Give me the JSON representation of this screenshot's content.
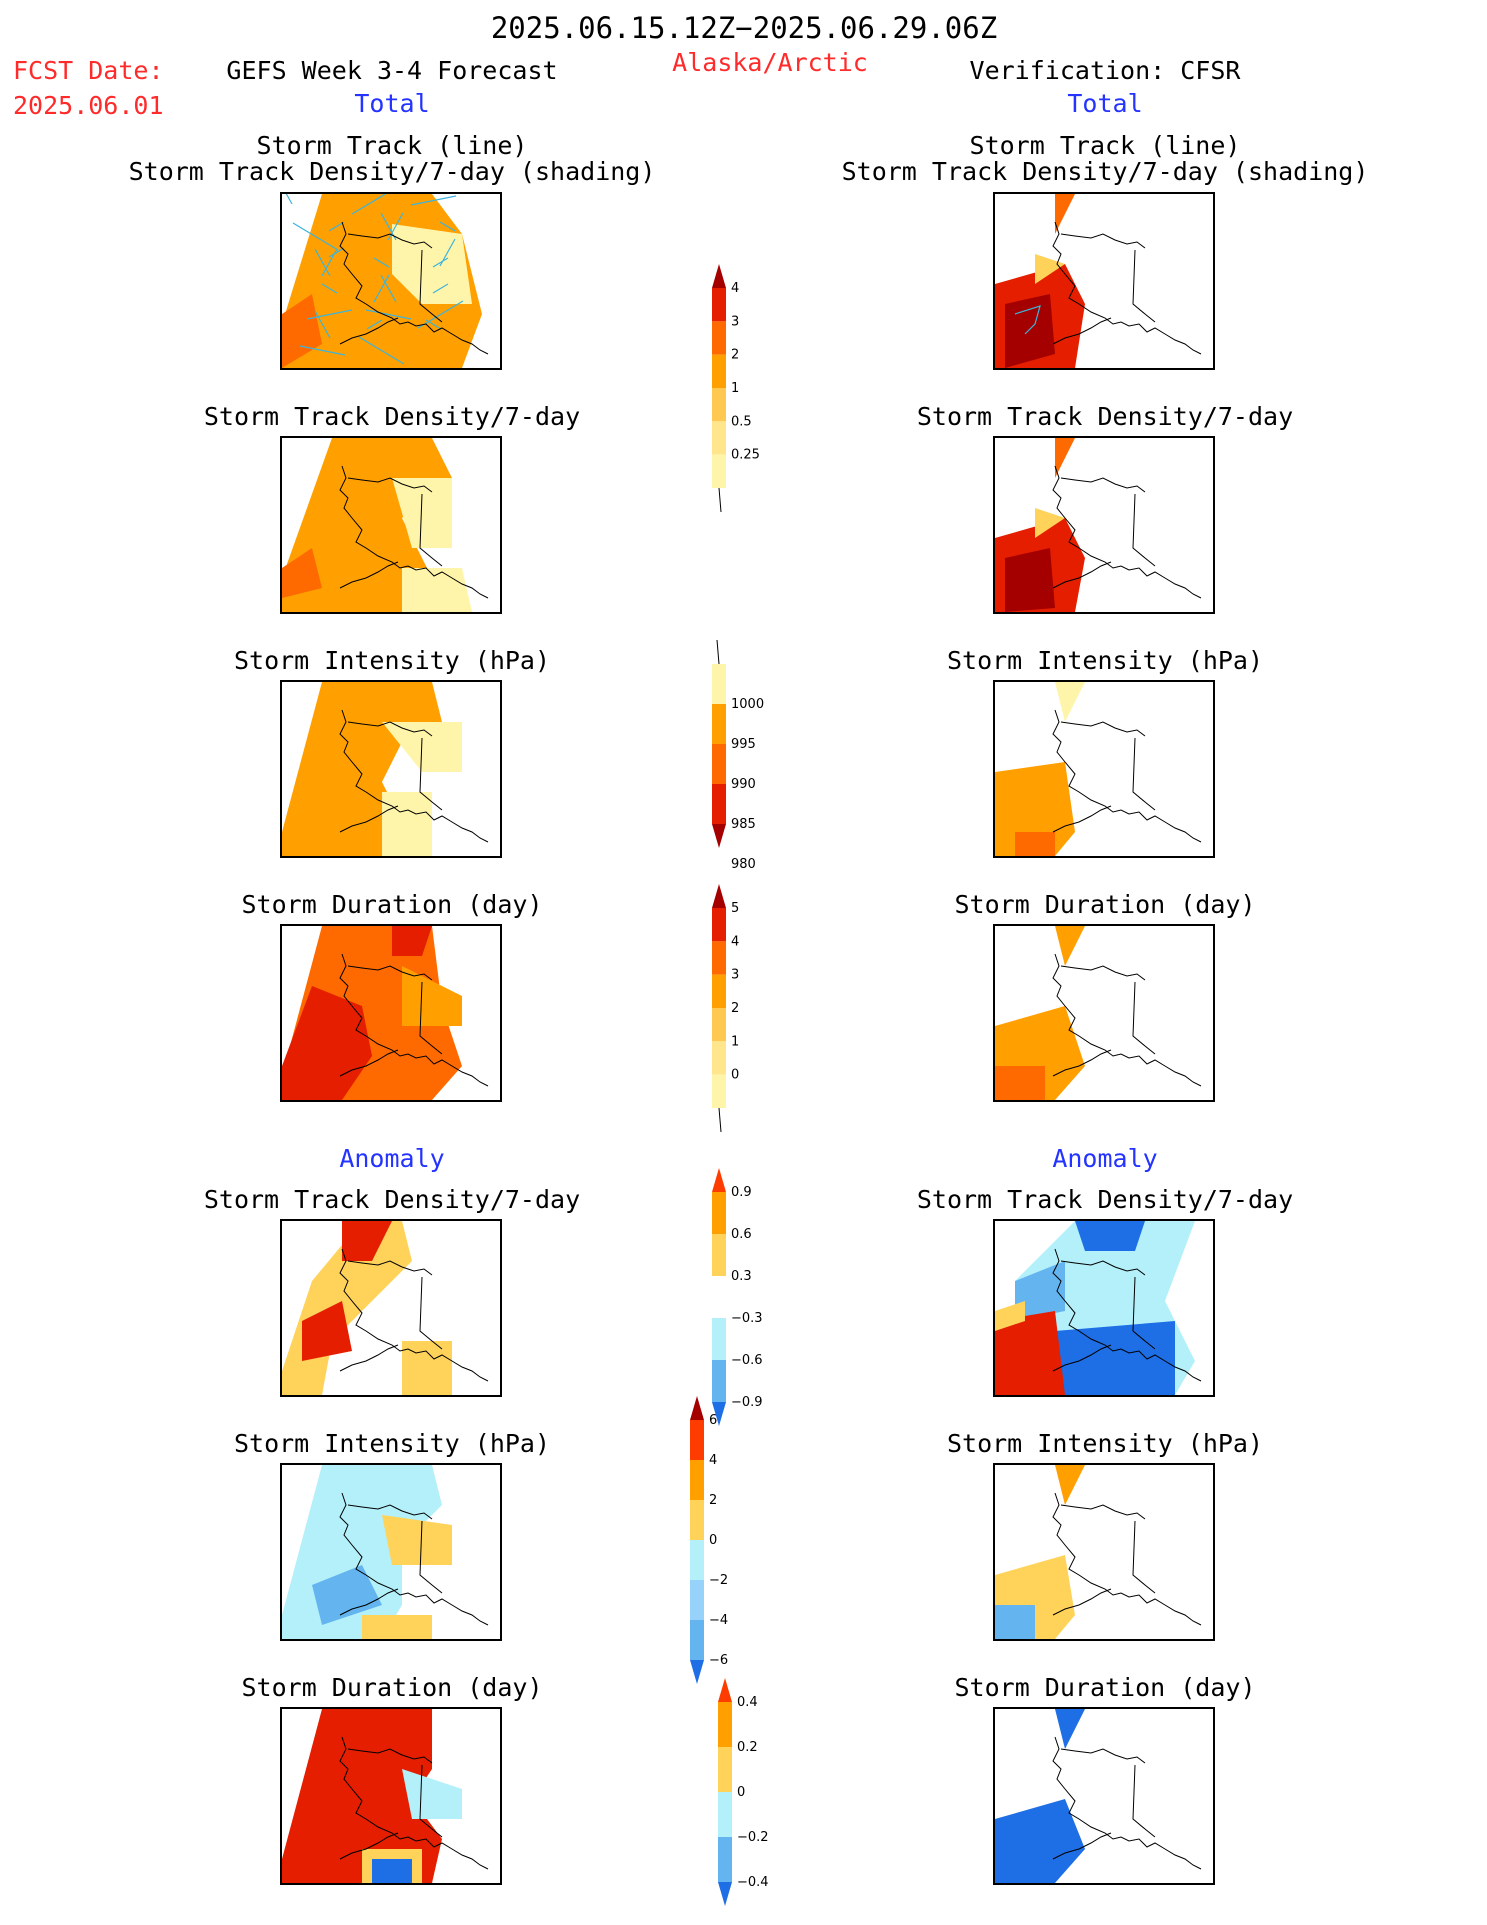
{
  "header": {
    "date_range": "2025.06.15.12Z−2025.06.29.06Z",
    "fcst_label": "FCST Date:",
    "fcst_date": "2025.06.01",
    "left_title": "GEFS Week 3-4 Forecast",
    "region": "Alaska/Arctic",
    "right_title": "Verification: CFSR"
  },
  "sections": {
    "total": "Total",
    "anomaly": "Anomaly"
  },
  "panel_titles": {
    "track_line": "Storm Track (line)",
    "track_shading": "Storm Track Density/7-day (shading)",
    "density": "Storm Track Density/7-day",
    "intensity": "Storm Intensity (hPa)",
    "duration": "Storm Duration (day)"
  },
  "colors": {
    "title_red": "#ff2a2a",
    "section_blue": "#2433ff",
    "pale_yellow": "#fff5aa",
    "yellow": "#ffd25a",
    "orange": "#ffa000",
    "dark_orange": "#ff6a00",
    "red": "#e51e00",
    "dark_red": "#a50000",
    "light_blue": "#b4f0fa",
    "mid_blue": "#64b4f0",
    "blue": "#1e6ee6",
    "track_line": "#3cb4dc"
  },
  "chart_data": [
    {
      "type": "heatmap",
      "id": "gefs-track-total",
      "title": "Storm Track (line) / Storm Track Density/7-day (shading)",
      "column": "GEFS Week 3-4 Forecast",
      "section": "Total",
      "colorbar": "density"
    },
    {
      "type": "heatmap",
      "id": "cfsr-track-total",
      "title": "Storm Track (line) / Storm Track Density/7-day (shading)",
      "column": "Verification: CFSR",
      "section": "Total",
      "colorbar": "density"
    },
    {
      "type": "heatmap",
      "id": "gefs-density-total",
      "title": "Storm Track Density/7-day",
      "column": "GEFS Week 3-4 Forecast",
      "section": "Total",
      "colorbar": "density"
    },
    {
      "type": "heatmap",
      "id": "cfsr-density-total",
      "title": "Storm Track Density/7-day",
      "column": "Verification: CFSR",
      "section": "Total",
      "colorbar": "density"
    },
    {
      "type": "heatmap",
      "id": "gefs-intensity-total",
      "title": "Storm Intensity (hPa)",
      "column": "GEFS Week 3-4 Forecast",
      "section": "Total",
      "colorbar": "intensity"
    },
    {
      "type": "heatmap",
      "id": "cfsr-intensity-total",
      "title": "Storm Intensity (hPa)",
      "column": "Verification: CFSR",
      "section": "Total",
      "colorbar": "intensity"
    },
    {
      "type": "heatmap",
      "id": "gefs-duration-total",
      "title": "Storm Duration (day)",
      "column": "GEFS Week 3-4 Forecast",
      "section": "Total",
      "colorbar": "duration"
    },
    {
      "type": "heatmap",
      "id": "cfsr-duration-total",
      "title": "Storm Duration (day)",
      "column": "Verification: CFSR",
      "section": "Total",
      "colorbar": "duration"
    },
    {
      "type": "heatmap",
      "id": "gefs-density-anom",
      "title": "Storm Track Density/7-day",
      "column": "GEFS Week 3-4 Forecast",
      "section": "Anomaly",
      "colorbar": "density_anom"
    },
    {
      "type": "heatmap",
      "id": "cfsr-density-anom",
      "title": "Storm Track Density/7-day",
      "column": "Verification: CFSR",
      "section": "Anomaly",
      "colorbar": "density_anom"
    },
    {
      "type": "heatmap",
      "id": "gefs-intensity-anom",
      "title": "Storm Intensity (hPa)",
      "column": "GEFS Week 3-4 Forecast",
      "section": "Anomaly",
      "colorbar": "intensity_anom"
    },
    {
      "type": "heatmap",
      "id": "cfsr-intensity-anom",
      "title": "Storm Intensity (hPa)",
      "column": "Verification: CFSR",
      "section": "Anomaly",
      "colorbar": "intensity_anom"
    },
    {
      "type": "heatmap",
      "id": "gefs-duration-anom",
      "title": "Storm Duration (day)",
      "column": "GEFS Week 3-4 Forecast",
      "section": "Anomaly",
      "colorbar": "duration_anom"
    },
    {
      "type": "heatmap",
      "id": "cfsr-duration-anom",
      "title": "Storm Duration (day)",
      "column": "Verification: CFSR",
      "section": "Anomaly",
      "colorbar": "duration_anom"
    }
  ],
  "colorbars": {
    "density": {
      "labels": [
        "4",
        "3",
        "2",
        "1",
        "0.5",
        "0.25"
      ],
      "colors": [
        "#a50000",
        "#e51e00",
        "#ff6a00",
        "#ffa000",
        "#ffc850",
        "#ffe68c",
        "#fff5aa"
      ],
      "extend": "max"
    },
    "intensity": {
      "labels": [
        "1000",
        "995",
        "990",
        "985",
        "980"
      ],
      "colors": [
        "#fff5aa",
        "#ffa000",
        "#ff6a00",
        "#e51e00",
        "#a50000"
      ],
      "extend": "min"
    },
    "duration": {
      "labels": [
        "5",
        "4",
        "3",
        "2",
        "1",
        "0"
      ],
      "colors": [
        "#a50000",
        "#e51e00",
        "#ff6a00",
        "#ffa000",
        "#ffc850",
        "#ffe68c",
        "#fff5aa"
      ],
      "extend": "max"
    },
    "density_anom": {
      "labels": [
        "0.9",
        "0.6",
        "0.3",
        "−0.3",
        "−0.6",
        "−0.9"
      ],
      "colors": [
        "#ff3c00",
        "#ffa000",
        "#ffd25a",
        "#ffffff",
        "#b4f0fa",
        "#64b4f0",
        "#1e6ee6"
      ],
      "extend": "both"
    },
    "intensity_anom": {
      "labels": [
        "6",
        "4",
        "2",
        "0",
        "−2",
        "−4",
        "−6"
      ],
      "colors": [
        "#a50000",
        "#ff3c00",
        "#ffa000",
        "#ffd25a",
        "#b4f0fa",
        "#96d2fa",
        "#64b4f0",
        "#1e6ee6"
      ],
      "extend": "both"
    },
    "duration_anom": {
      "labels": [
        "0.4",
        "0.2",
        "0",
        "−0.2",
        "−0.4"
      ],
      "colors": [
        "#ff3c00",
        "#ffa000",
        "#ffd25a",
        "#b4f0fa",
        "#64b4f0",
        "#1e6ee6"
      ],
      "extend": "both"
    }
  }
}
